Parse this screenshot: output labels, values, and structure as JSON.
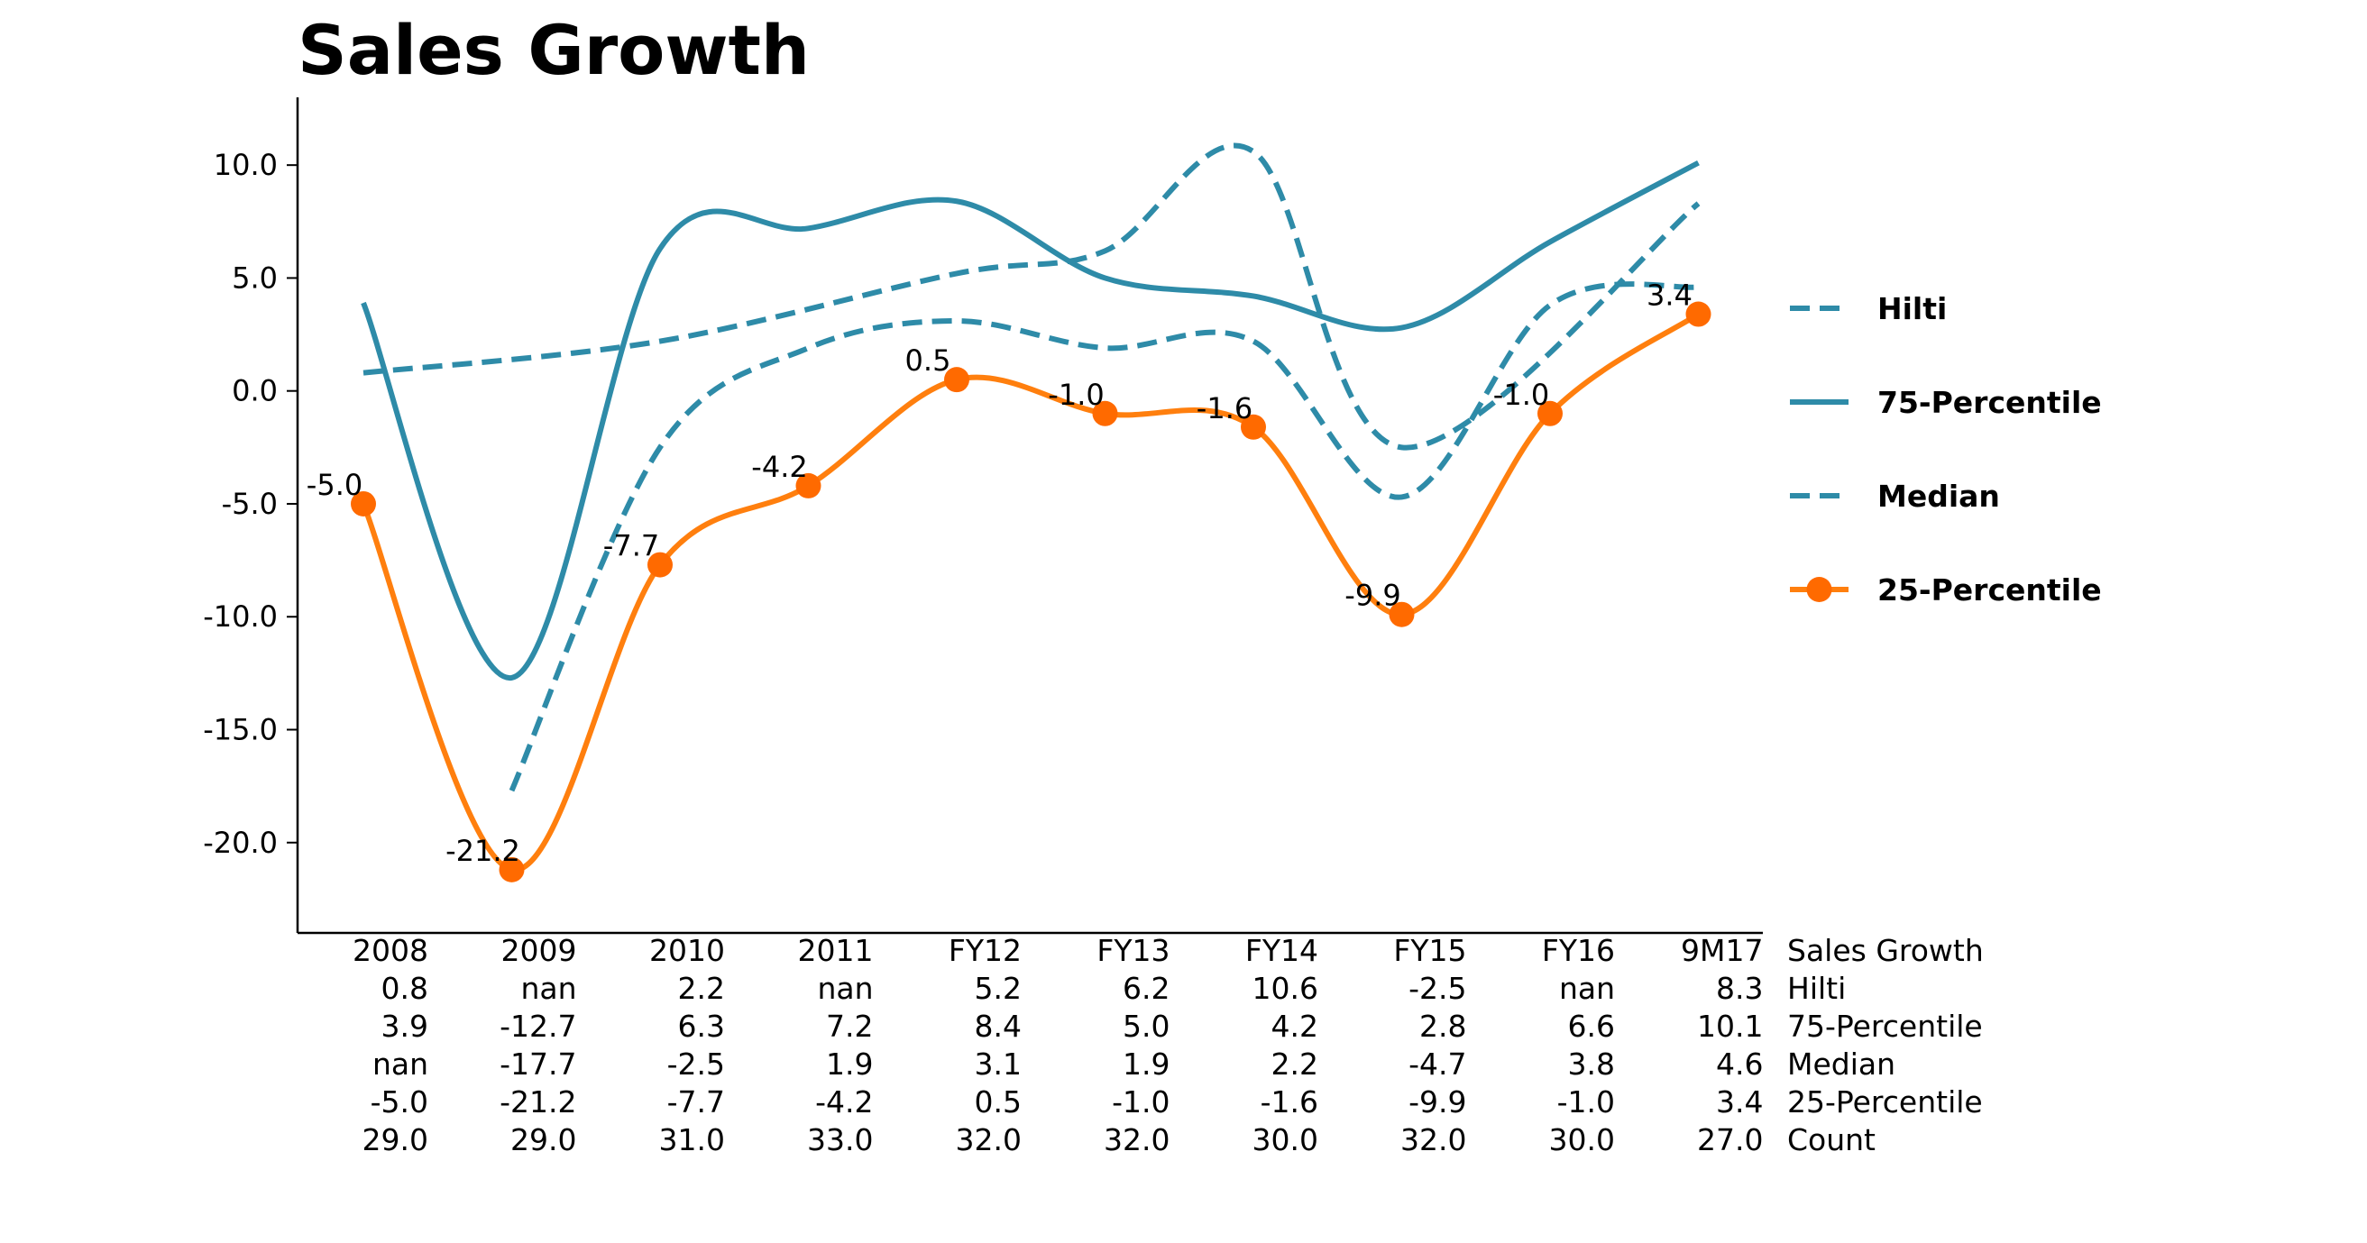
{
  "chart_data": {
    "type": "line",
    "title": "Sales Growth",
    "xlabel": "",
    "ylabel": "",
    "categories": [
      "2008",
      "2009",
      "2010",
      "2011",
      "FY12",
      "FY13",
      "FY14",
      "FY15",
      "FY16",
      "9M17"
    ],
    "ylim": [
      -24.0,
      13.0
    ],
    "yticks": [
      10.0,
      5.0,
      0.0,
      -5.0,
      -10.0,
      -15.0,
      -20.0
    ],
    "ytick_labels": [
      "10.0",
      "5.0",
      "0.0",
      "-5.0",
      "-10.0",
      "-15.0",
      "-20.0"
    ],
    "grid": false,
    "legend_position": "right",
    "series": [
      {
        "name": "Hilti",
        "style": "dashed",
        "color": "#2e8ba8",
        "values": [
          0.8,
          null,
          2.2,
          null,
          5.2,
          6.2,
          10.6,
          -2.5,
          null,
          8.3
        ]
      },
      {
        "name": "75-Percentile",
        "style": "solid",
        "color": "#2e8ba8",
        "values": [
          3.9,
          -12.7,
          6.3,
          7.2,
          8.4,
          5.0,
          4.2,
          2.8,
          6.6,
          10.1
        ]
      },
      {
        "name": "Median",
        "style": "dashed",
        "color": "#2e8ba8",
        "values": [
          null,
          -17.7,
          -2.5,
          1.9,
          3.1,
          1.9,
          2.2,
          -4.7,
          3.8,
          4.6
        ]
      },
      {
        "name": "25-Percentile",
        "style": "solid-markers",
        "color": "#ff7f0e",
        "marker_color": "#ff6a00",
        "values": [
          -5.0,
          -21.2,
          -7.7,
          -4.2,
          0.5,
          -1.0,
          -1.6,
          -9.9,
          -1.0,
          3.4
        ],
        "data_labels": [
          "-5.0",
          "-21.2",
          "-7.7",
          "-4.2",
          "0.5",
          "-1.0",
          "-1.6",
          "-9.9",
          "-1.0",
          "3.4"
        ]
      }
    ],
    "table": {
      "header_label": "Sales Growth",
      "rows": [
        {
          "label": "Hilti",
          "cells": [
            "0.8",
            "nan",
            "2.2",
            "nan",
            "5.2",
            "6.2",
            "10.6",
            "-2.5",
            "nan",
            "8.3"
          ]
        },
        {
          "label": "75-Percentile",
          "cells": [
            "3.9",
            "-12.7",
            "6.3",
            "7.2",
            "8.4",
            "5.0",
            "4.2",
            "2.8",
            "6.6",
            "10.1"
          ]
        },
        {
          "label": "Median",
          "cells": [
            "nan",
            "-17.7",
            "-2.5",
            "1.9",
            "3.1",
            "1.9",
            "2.2",
            "-4.7",
            "3.8",
            "4.6"
          ]
        },
        {
          "label": "25-Percentile",
          "cells": [
            "-5.0",
            "-21.2",
            "-7.7",
            "-4.2",
            "0.5",
            "-1.0",
            "-1.6",
            "-9.9",
            "-1.0",
            "3.4"
          ]
        },
        {
          "label": "Count",
          "cells": [
            "29.0",
            "29.0",
            "31.0",
            "33.0",
            "32.0",
            "32.0",
            "30.0",
            "32.0",
            "30.0",
            "27.0"
          ]
        }
      ]
    }
  }
}
